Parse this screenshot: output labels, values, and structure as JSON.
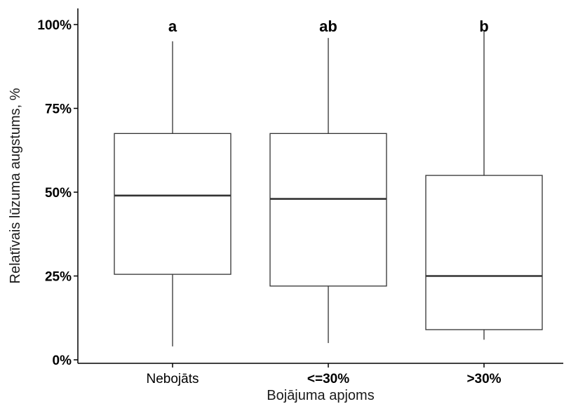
{
  "chart_data": {
    "type": "boxplot",
    "xlabel": "Bojājuma apjoms",
    "ylabel": "Relatīvais lūzuma augstums, %",
    "ylim": [
      0,
      100
    ],
    "yticks": [
      0,
      25,
      50,
      75,
      100
    ],
    "ytick_labels": [
      "0%",
      "25%",
      "50%",
      "75%",
      "100%"
    ],
    "grid": false,
    "categories": [
      "Nebojāts",
      "<=30%",
      ">30%"
    ],
    "category_label_bold": [
      false,
      true,
      true
    ],
    "boxes": [
      {
        "category": "Nebojāts",
        "min": 4,
        "q1": 25.5,
        "median": 49,
        "q3": 67.5,
        "max": 95,
        "annotation": "a"
      },
      {
        "category": "<=30%",
        "min": 5,
        "q1": 22,
        "median": 48,
        "q3": 67.5,
        "max": 96,
        "annotation": "ab"
      },
      {
        "category": ">30%",
        "min": 6,
        "q1": 9,
        "median": 25,
        "q3": 55,
        "max": 98,
        "annotation": "b"
      }
    ]
  }
}
